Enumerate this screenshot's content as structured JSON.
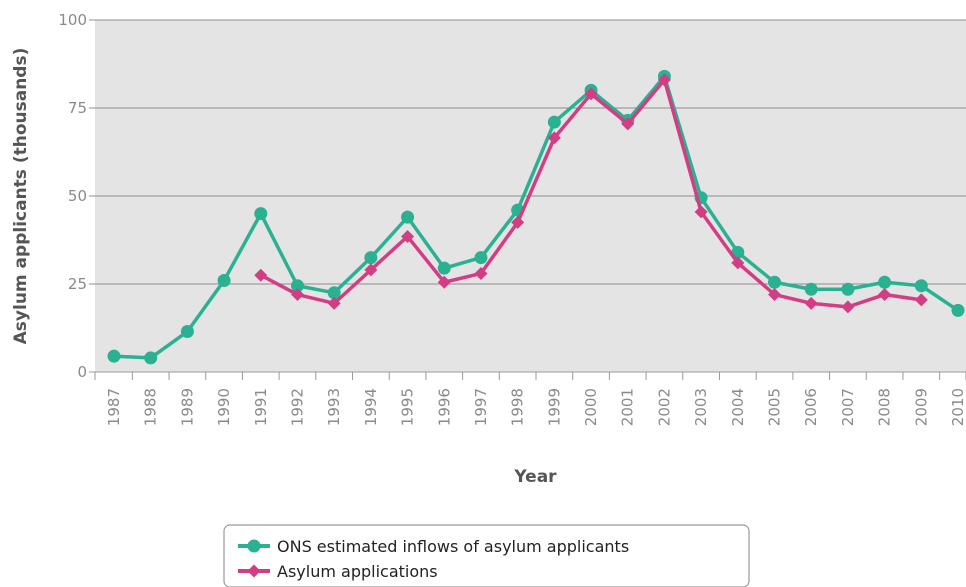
{
  "chart_data": {
    "type": "line",
    "xlabel": "Year",
    "ylabel": "Asylum applicants (thousands)",
    "ylim": [
      0,
      100
    ],
    "yticks": [
      "0",
      "25",
      "50",
      "75",
      "100"
    ],
    "categories": [
      "1987",
      "1988",
      "1989",
      "1990",
      "1991",
      "1992",
      "1993",
      "1994",
      "1995",
      "1996",
      "1997",
      "1998",
      "1999",
      "2000",
      "2001",
      "2002",
      "2003",
      "2004",
      "2005",
      "2006",
      "2007",
      "2008",
      "2009",
      "2010"
    ],
    "grid": true,
    "legend_position": "bottom",
    "series": [
      {
        "name": "ONS estimated inflows of asylum applicants",
        "color": "#2ab191",
        "marker": "circle",
        "values": [
          4.5,
          4.0,
          11.5,
          26.0,
          45.0,
          24.5,
          22.5,
          32.5,
          44.0,
          29.5,
          32.5,
          46.0,
          71.0,
          80.0,
          71.5,
          84.0,
          49.5,
          34.0,
          25.5,
          23.5,
          23.5,
          25.5,
          24.5,
          17.5
        ]
      },
      {
        "name": "Asylum applications",
        "color": "#d23d84",
        "marker": "diamond",
        "values": [
          null,
          null,
          null,
          null,
          27.5,
          22.0,
          19.5,
          29.0,
          38.5,
          25.5,
          28.0,
          42.5,
          66.5,
          79.0,
          70.5,
          83.0,
          45.5,
          31.0,
          22.0,
          19.5,
          18.5,
          22.0,
          20.5,
          null
        ]
      }
    ]
  }
}
